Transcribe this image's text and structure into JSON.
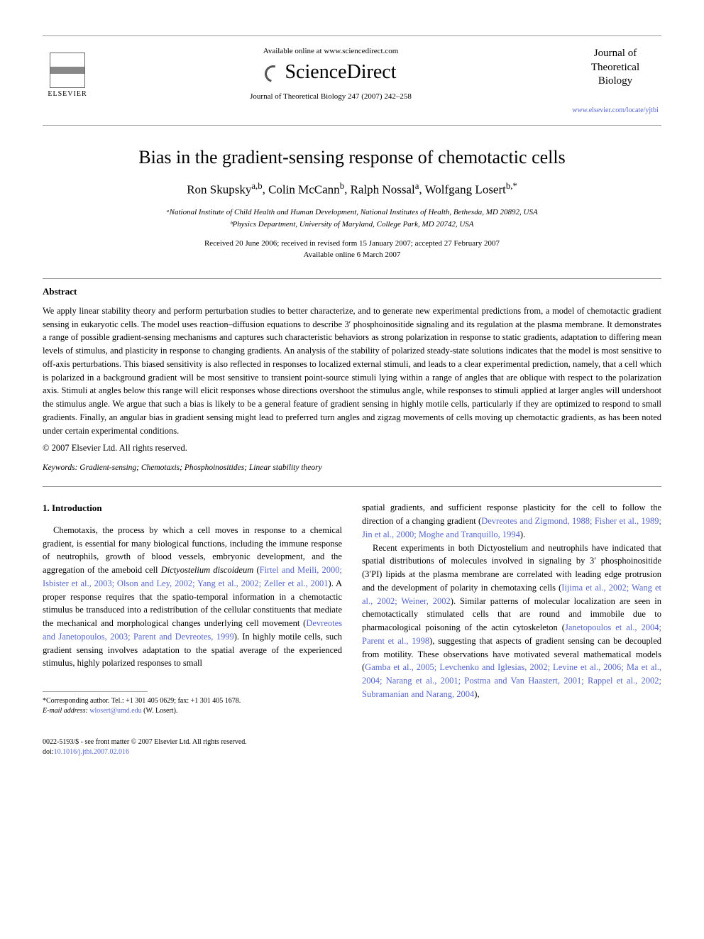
{
  "header": {
    "available_text": "Available online at www.sciencedirect.com",
    "sd_brand": "ScienceDirect",
    "journal_ref": "Journal of Theoretical Biology 247 (2007) 242–258",
    "elsevier_label": "ELSEVIER",
    "journal_title_line1": "Journal of",
    "journal_title_line2": "Theoretical",
    "journal_title_line3": "Biology",
    "journal_link": "www.elsevier.com/locate/yjtbi"
  },
  "article": {
    "title": "Bias in the gradient-sensing response of chemotactic cells",
    "authors_html": "Ron Skupsky<sup>a,b</sup>, Colin McCann<sup>b</sup>, Ralph Nossal<sup>a</sup>, Wolfgang Losert<sup>b,*</sup>",
    "affiliation_a": "ᵃNational Institute of Child Health and Human Development, National Institutes of Health, Bethesda, MD 20892, USA",
    "affiliation_b": "ᵇPhysics Department, University of Maryland, College Park, MD 20742, USA",
    "dates_line1": "Received 20 June 2006; received in revised form 15 January 2007; accepted 27 February 2007",
    "dates_line2": "Available online 6 March 2007"
  },
  "abstract": {
    "heading": "Abstract",
    "text": "We apply linear stability theory and perform perturbation studies to better characterize, and to generate new experimental predictions from, a model of chemotactic gradient sensing in eukaryotic cells. The model uses reaction–diffusion equations to describe 3′ phosphoinositide signaling and its regulation at the plasma membrane. It demonstrates a range of possible gradient-sensing mechanisms and captures such characteristic behaviors as strong polarization in response to static gradients, adaptation to differing mean levels of stimulus, and plasticity in response to changing gradients. An analysis of the stability of polarized steady-state solutions indicates that the model is most sensitive to off-axis perturbations. This biased sensitivity is also reflected in responses to localized external stimuli, and leads to a clear experimental prediction, namely, that a cell which is polarized in a background gradient will be most sensitive to transient point-source stimuli lying within a range of angles that are oblique with respect to the polarization axis. Stimuli at angles below this range will elicit responses whose directions overshoot the stimulus angle, while responses to stimuli applied at larger angles will undershoot the stimulus angle. We argue that such a bias is likely to be a general feature of gradient sensing in highly motile cells, particularly if they are optimized to respond to small gradients. Finally, an angular bias in gradient sensing might lead to preferred turn angles and zigzag movements of cells moving up chemotactic gradients, as has been noted under certain experimental conditions.",
    "copyright": "© 2007 Elsevier Ltd. All rights reserved.",
    "keywords_label": "Keywords:",
    "keywords": "Gradient-sensing; Chemotaxis; Phosphoinositides; Linear stability theory"
  },
  "body": {
    "section_heading": "1. Introduction",
    "col1_p1_a": "Chemotaxis, the process by which a cell moves in response to a chemical gradient, is essential for many biological functions, including the immune response of neutrophils, growth of blood vessels, embryonic development, and the aggregation of the ameboid cell ",
    "col1_p1_ital": "Dictyostelium discoideum",
    "col1_p1_b": " (",
    "col1_p1_cite1": "Firtel and Meili, 2000; Isbister et al., 2003; Olson and Ley, 2002; Yang et al., 2002; Zeller et al., 2001",
    "col1_p1_c": "). A proper response requires that the spatio-temporal information in a chemotactic stimulus be transduced into a redistribution of the cellular constituents that mediate the mechanical and morphological changes underlying cell movement (",
    "col1_p1_cite2": "Devreotes and Janetopoulos, 2003; Parent and Devreotes, 1999",
    "col1_p1_d": "). In highly motile cells, such gradient sensing involves adaptation to the spatial average of the experienced stimulus, highly polarized responses to small",
    "col2_p1_a": "spatial gradients, and sufficient response plasticity for the cell to follow the direction of a changing gradient (",
    "col2_p1_cite1": "Devreotes and Zigmond, 1988; Fisher et al., 1989; Jin et al., 2000; Moghe and Tranquillo, 1994",
    "col2_p1_b": ").",
    "col2_p2_a": "Recent experiments in both Dictyostelium and neutrophils have indicated that spatial distributions of molecules involved in signaling by 3′ phosphoinositide (3′PI) lipids at the plasma membrane are correlated with leading edge protrusion and the development of polarity in chemotaxing cells (",
    "col2_p2_cite1": "Iijima et al., 2002; Wang et al., 2002; Weiner, 2002",
    "col2_p2_b": "). Similar patterns of molecular localization are seen in chemotactically stimulated cells that are round and immobile due to pharmacological poisoning of the actin cytoskeleton (",
    "col2_p2_cite2": "Janetopoulos et al., 2004; Parent et al., 1998",
    "col2_p2_c": "), suggesting that aspects of gradient sensing can be decoupled from motility. These observations have motivated several mathematical models (",
    "col2_p2_cite3": "Gamba et al., 2005; Levchenko and Iglesias, 2002; Levine et al., 2006; Ma et al., 2004; Narang et al., 2001; Postma and Van Haastert, 2001; Rappel et al., 2002; Subramanian and Narang, 2004",
    "col2_p2_d": "),"
  },
  "footnote": {
    "corr": "*Corresponding author. Tel.: +1 301 405 0629; fax: +1 301 405 1678.",
    "email_label": "E-mail address:",
    "email": "wlosert@umd.edu",
    "email_name": "(W. Losert)."
  },
  "footer": {
    "line1": "0022-5193/$ - see front matter © 2007 Elsevier Ltd. All rights reserved.",
    "line2": "doi:10.1016/j.jtbi.2007.02.016"
  },
  "colors": {
    "link": "#5566cc",
    "text": "#000000",
    "rule": "#999999",
    "background": "#ffffff"
  }
}
